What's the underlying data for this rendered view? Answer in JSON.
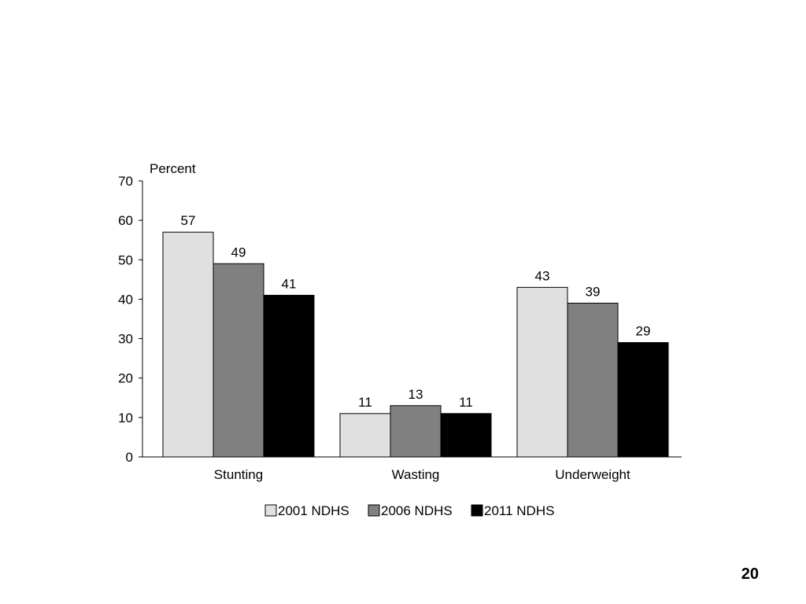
{
  "slide": {
    "page_number": "20"
  },
  "chart_data": {
    "type": "bar",
    "title": "",
    "xlabel": "",
    "ylabel": "Percent",
    "ylim": [
      0,
      70
    ],
    "yticks": [
      0,
      10,
      20,
      30,
      40,
      50,
      60,
      70
    ],
    "grid": false,
    "legend_position": "bottom",
    "categories": [
      "Stunting",
      "Wasting",
      "Underweight"
    ],
    "series": [
      {
        "name": "2001 NDHS",
        "values": [
          57,
          11,
          43
        ],
        "color": "#e0e0e0"
      },
      {
        "name": "2006 NDHS",
        "values": [
          49,
          13,
          39
        ],
        "color": "#808080"
      },
      {
        "name": "2011 NDHS",
        "values": [
          41,
          11,
          29
        ],
        "color": "#000000"
      }
    ]
  }
}
